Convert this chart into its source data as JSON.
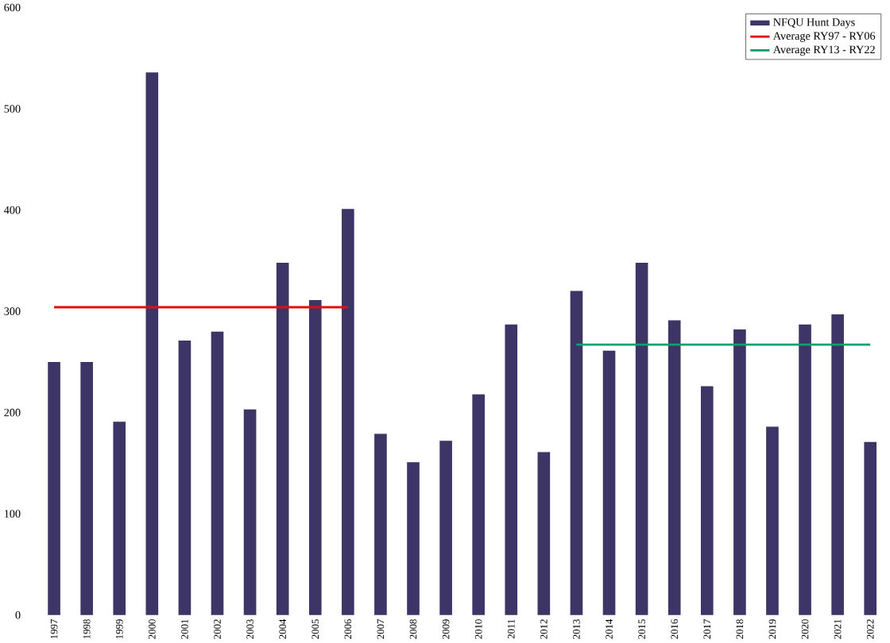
{
  "chart_data": {
    "type": "bar",
    "categories": [
      "1997",
      "1998",
      "1999",
      "2000",
      "2001",
      "2002",
      "2003",
      "2004",
      "2005",
      "2006",
      "2007",
      "2008",
      "2009",
      "2010",
      "2011",
      "2012",
      "2013",
      "2014",
      "2015",
      "2016",
      "2017",
      "2018",
      "2019",
      "2020",
      "2021",
      "2022"
    ],
    "series": [
      {
        "name": "NFQU Hunt Days",
        "color": "#3d3566",
        "values": [
          250,
          250,
          191,
          536,
          271,
          280,
          203,
          348,
          311,
          401,
          179,
          151,
          172,
          218,
          287,
          161,
          320,
          261,
          348,
          291,
          226,
          282,
          186,
          287,
          297,
          171
        ]
      },
      {
        "name": "Average RY97 - RY06",
        "type": "line",
        "color": "#e01010",
        "values": [
          304,
          304,
          304,
          304,
          304,
          304,
          304,
          304,
          304,
          304,
          null,
          null,
          null,
          null,
          null,
          null,
          null,
          null,
          null,
          null,
          null,
          null,
          null,
          null,
          null,
          null
        ]
      },
      {
        "name": "Average RY13 - RY22",
        "type": "line",
        "color": "#10a070",
        "values": [
          null,
          null,
          null,
          null,
          null,
          null,
          null,
          null,
          null,
          null,
          null,
          null,
          null,
          null,
          null,
          null,
          267,
          267,
          267,
          267,
          267,
          267,
          267,
          267,
          267,
          267
        ]
      }
    ],
    "ylim": [
      0,
      600
    ],
    "yticks": [
      0,
      100,
      200,
      300,
      400,
      500,
      600
    ],
    "grid": false,
    "legend": "top right",
    "marker": "none",
    "line_style": "solid"
  }
}
